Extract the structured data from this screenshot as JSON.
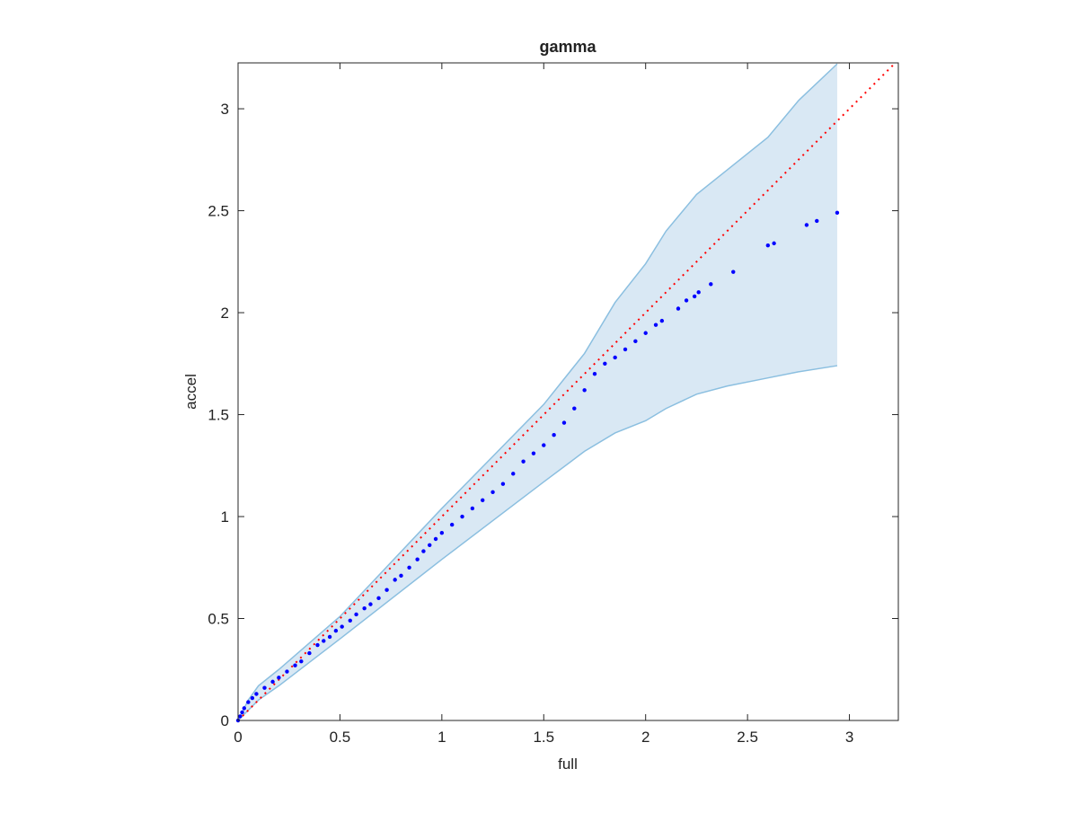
{
  "chart_data": {
    "type": "scatter",
    "title": "gamma",
    "xlabel": "full",
    "ylabel": "accel",
    "x": [
      0,
      0.01,
      0.02,
      0.03,
      0.05,
      0.07,
      0.09,
      0.13,
      0.17,
      0.2,
      0.24,
      0.28,
      0.31,
      0.35,
      0.39,
      0.42,
      0.45,
      0.48,
      0.51,
      0.55,
      0.58,
      0.62,
      0.65,
      0.69,
      0.73,
      0.77,
      0.8,
      0.84,
      0.88,
      0.91,
      0.94,
      0.97,
      1.0,
      1.05,
      1.1,
      1.15,
      1.2,
      1.25,
      1.3,
      1.35,
      1.4,
      1.45,
      1.5,
      1.55,
      1.6,
      1.65,
      1.7,
      1.75,
      1.8,
      1.85,
      1.9,
      1.95,
      2.0,
      2.05,
      2.08,
      2.16,
      2.2,
      2.24,
      2.26,
      2.32,
      2.43,
      2.6,
      2.63,
      2.79,
      2.84,
      2.94
    ],
    "y": [
      0,
      0.02,
      0.04,
      0.06,
      0.09,
      0.11,
      0.13,
      0.16,
      0.19,
      0.21,
      0.24,
      0.27,
      0.29,
      0.33,
      0.37,
      0.39,
      0.41,
      0.44,
      0.46,
      0.49,
      0.52,
      0.55,
      0.57,
      0.6,
      0.64,
      0.69,
      0.71,
      0.75,
      0.79,
      0.83,
      0.86,
      0.89,
      0.92,
      0.96,
      1.0,
      1.04,
      1.08,
      1.12,
      1.16,
      1.21,
      1.27,
      1.31,
      1.35,
      1.4,
      1.46,
      1.53,
      1.62,
      1.7,
      1.75,
      1.78,
      1.82,
      1.86,
      1.9,
      1.94,
      1.96,
      2.02,
      2.06,
      2.08,
      2.1,
      2.14,
      2.2,
      2.33,
      2.34,
      2.43,
      2.45,
      2.49
    ],
    "color": "#0000ff",
    "band": {
      "x": [
        0,
        0.05,
        0.1,
        0.2,
        0.5,
        1.0,
        1.5,
        1.7,
        1.85,
        2.0,
        2.1,
        2.25,
        2.4,
        2.6,
        2.75,
        2.94
      ],
      "upper": [
        0,
        0.1,
        0.17,
        0.25,
        0.51,
        1.04,
        1.55,
        1.8,
        2.05,
        2.24,
        2.4,
        2.58,
        2.7,
        2.86,
        3.04,
        3.22
      ],
      "lower": [
        0,
        0.05,
        0.1,
        0.17,
        0.4,
        0.79,
        1.17,
        1.32,
        1.41,
        1.47,
        1.53,
        1.6,
        1.64,
        1.68,
        1.71,
        1.74
      ],
      "fill": "#d9e8f4",
      "edge": "#8bbfe0"
    },
    "reference_line": {
      "x": [
        0,
        3.24
      ],
      "y": [
        0,
        3.24
      ],
      "color": "#ff0000"
    },
    "xlim": [
      0,
      3.24
    ],
    "ylim": [
      0,
      3.225
    ],
    "xticks": [
      0,
      0.5,
      1,
      1.5,
      2,
      2.5,
      3
    ],
    "yticks": [
      0,
      0.5,
      1,
      1.5,
      2,
      2.5,
      3
    ]
  }
}
